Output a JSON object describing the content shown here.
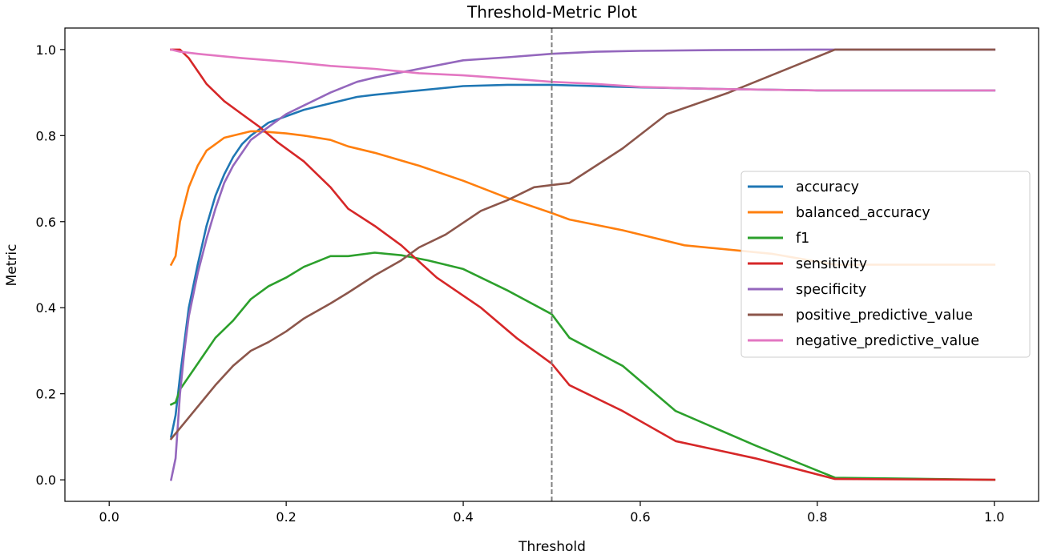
{
  "chart_data": {
    "type": "line",
    "title": "Threshold-Metric Plot",
    "xlabel": "Threshold",
    "ylabel": "Metric",
    "xlim": [
      -0.05,
      1.05
    ],
    "ylim": [
      -0.05,
      1.05
    ],
    "xticks": [
      0.0,
      0.2,
      0.4,
      0.6,
      0.8,
      1.0
    ],
    "xtick_labels": [
      "0.0",
      "0.2",
      "0.4",
      "0.6",
      "0.8",
      "1.0"
    ],
    "yticks": [
      0.0,
      0.2,
      0.4,
      0.6,
      0.8,
      1.0
    ],
    "ytick_labels": [
      "0.0",
      "0.2",
      "0.4",
      "0.6",
      "0.8",
      "1.0"
    ],
    "grid": false,
    "legend_position": "center-right",
    "vline": {
      "x": 0.5,
      "style": "dashed",
      "color": "#808080"
    },
    "series": [
      {
        "name": "accuracy",
        "color": "#1f77b4",
        "points": [
          [
            0.07,
            0.1
          ],
          [
            0.075,
            0.15
          ],
          [
            0.08,
            0.24
          ],
          [
            0.085,
            0.32
          ],
          [
            0.09,
            0.4
          ],
          [
            0.1,
            0.5
          ],
          [
            0.11,
            0.59
          ],
          [
            0.12,
            0.66
          ],
          [
            0.13,
            0.71
          ],
          [
            0.14,
            0.75
          ],
          [
            0.15,
            0.78
          ],
          [
            0.16,
            0.8
          ],
          [
            0.18,
            0.83
          ],
          [
            0.2,
            0.845
          ],
          [
            0.22,
            0.86
          ],
          [
            0.25,
            0.875
          ],
          [
            0.28,
            0.89
          ],
          [
            0.3,
            0.895
          ],
          [
            0.35,
            0.905
          ],
          [
            0.4,
            0.915
          ],
          [
            0.45,
            0.918
          ],
          [
            0.5,
            0.918
          ],
          [
            0.55,
            0.915
          ],
          [
            0.6,
            0.912
          ],
          [
            0.7,
            0.908
          ],
          [
            0.8,
            0.905
          ],
          [
            0.9,
            0.905
          ],
          [
            1.0,
            0.905
          ]
        ]
      },
      {
        "name": "balanced_accuracy",
        "color": "#ff7f0e",
        "points": [
          [
            0.07,
            0.5
          ],
          [
            0.075,
            0.52
          ],
          [
            0.08,
            0.6
          ],
          [
            0.09,
            0.68
          ],
          [
            0.1,
            0.73
          ],
          [
            0.11,
            0.765
          ],
          [
            0.12,
            0.78
          ],
          [
            0.13,
            0.795
          ],
          [
            0.15,
            0.805
          ],
          [
            0.16,
            0.81
          ],
          [
            0.17,
            0.81
          ],
          [
            0.2,
            0.805
          ],
          [
            0.22,
            0.8
          ],
          [
            0.25,
            0.79
          ],
          [
            0.27,
            0.775
          ],
          [
            0.3,
            0.76
          ],
          [
            0.35,
            0.73
          ],
          [
            0.4,
            0.695
          ],
          [
            0.45,
            0.655
          ],
          [
            0.5,
            0.62
          ],
          [
            0.52,
            0.605
          ],
          [
            0.58,
            0.58
          ],
          [
            0.65,
            0.545
          ],
          [
            0.75,
            0.525
          ],
          [
            0.82,
            0.5
          ],
          [
            1.0,
            0.5
          ]
        ]
      },
      {
        "name": "f1",
        "color": "#2ca02c",
        "points": [
          [
            0.07,
            0.175
          ],
          [
            0.075,
            0.18
          ],
          [
            0.08,
            0.21
          ],
          [
            0.1,
            0.27
          ],
          [
            0.12,
            0.33
          ],
          [
            0.14,
            0.37
          ],
          [
            0.16,
            0.42
          ],
          [
            0.18,
            0.45
          ],
          [
            0.2,
            0.47
          ],
          [
            0.22,
            0.495
          ],
          [
            0.25,
            0.52
          ],
          [
            0.27,
            0.52
          ],
          [
            0.3,
            0.528
          ],
          [
            0.33,
            0.522
          ],
          [
            0.36,
            0.51
          ],
          [
            0.4,
            0.49
          ],
          [
            0.45,
            0.44
          ],
          [
            0.5,
            0.385
          ],
          [
            0.52,
            0.33
          ],
          [
            0.58,
            0.265
          ],
          [
            0.64,
            0.16
          ],
          [
            0.73,
            0.08
          ],
          [
            0.82,
            0.005
          ],
          [
            1.0,
            0.0
          ]
        ]
      },
      {
        "name": "sensitivity",
        "color": "#d62728",
        "points": [
          [
            0.07,
            1.0
          ],
          [
            0.08,
            1.0
          ],
          [
            0.09,
            0.98
          ],
          [
            0.1,
            0.95
          ],
          [
            0.11,
            0.92
          ],
          [
            0.12,
            0.9
          ],
          [
            0.13,
            0.88
          ],
          [
            0.15,
            0.85
          ],
          [
            0.17,
            0.82
          ],
          [
            0.19,
            0.785
          ],
          [
            0.2,
            0.77
          ],
          [
            0.22,
            0.74
          ],
          [
            0.25,
            0.68
          ],
          [
            0.27,
            0.63
          ],
          [
            0.3,
            0.59
          ],
          [
            0.33,
            0.545
          ],
          [
            0.37,
            0.47
          ],
          [
            0.42,
            0.4
          ],
          [
            0.46,
            0.33
          ],
          [
            0.5,
            0.27
          ],
          [
            0.52,
            0.22
          ],
          [
            0.58,
            0.16
          ],
          [
            0.64,
            0.09
          ],
          [
            0.73,
            0.05
          ],
          [
            0.82,
            0.002
          ],
          [
            1.0,
            0.0
          ]
        ]
      },
      {
        "name": "specificity",
        "color": "#9467bd",
        "points": [
          [
            0.07,
            0.0
          ],
          [
            0.075,
            0.05
          ],
          [
            0.08,
            0.2
          ],
          [
            0.085,
            0.3
          ],
          [
            0.09,
            0.38
          ],
          [
            0.1,
            0.48
          ],
          [
            0.11,
            0.56
          ],
          [
            0.12,
            0.63
          ],
          [
            0.13,
            0.69
          ],
          [
            0.14,
            0.73
          ],
          [
            0.16,
            0.79
          ],
          [
            0.18,
            0.82
          ],
          [
            0.2,
            0.85
          ],
          [
            0.22,
            0.87
          ],
          [
            0.25,
            0.9
          ],
          [
            0.28,
            0.925
          ],
          [
            0.3,
            0.935
          ],
          [
            0.35,
            0.955
          ],
          [
            0.4,
            0.975
          ],
          [
            0.45,
            0.982
          ],
          [
            0.5,
            0.99
          ],
          [
            0.55,
            0.995
          ],
          [
            0.6,
            0.997
          ],
          [
            0.7,
            0.999
          ],
          [
            0.8,
            1.0
          ],
          [
            1.0,
            1.0
          ]
        ]
      },
      {
        "name": "positive_predictive_value",
        "color": "#8c564b",
        "points": [
          [
            0.07,
            0.095
          ],
          [
            0.08,
            0.12
          ],
          [
            0.1,
            0.17
          ],
          [
            0.12,
            0.22
          ],
          [
            0.14,
            0.265
          ],
          [
            0.16,
            0.3
          ],
          [
            0.18,
            0.32
          ],
          [
            0.2,
            0.345
          ],
          [
            0.22,
            0.375
          ],
          [
            0.25,
            0.41
          ],
          [
            0.27,
            0.435
          ],
          [
            0.3,
            0.475
          ],
          [
            0.33,
            0.51
          ],
          [
            0.35,
            0.54
          ],
          [
            0.38,
            0.57
          ],
          [
            0.42,
            0.625
          ],
          [
            0.45,
            0.65
          ],
          [
            0.48,
            0.68
          ],
          [
            0.5,
            0.685
          ],
          [
            0.52,
            0.69
          ],
          [
            0.58,
            0.77
          ],
          [
            0.63,
            0.85
          ],
          [
            0.7,
            0.9
          ],
          [
            0.82,
            1.0
          ],
          [
            1.0,
            1.0
          ]
        ]
      },
      {
        "name": "negative_predictive_value",
        "color": "#e377c2",
        "points": [
          [
            0.07,
            1.0
          ],
          [
            0.08,
            0.995
          ],
          [
            0.1,
            0.99
          ],
          [
            0.15,
            0.98
          ],
          [
            0.2,
            0.972
          ],
          [
            0.25,
            0.962
          ],
          [
            0.3,
            0.955
          ],
          [
            0.35,
            0.945
          ],
          [
            0.4,
            0.94
          ],
          [
            0.45,
            0.933
          ],
          [
            0.5,
            0.925
          ],
          [
            0.55,
            0.92
          ],
          [
            0.6,
            0.913
          ],
          [
            0.65,
            0.91
          ],
          [
            0.7,
            0.908
          ],
          [
            0.8,
            0.905
          ],
          [
            0.9,
            0.905
          ],
          [
            1.0,
            0.905
          ]
        ]
      }
    ]
  }
}
